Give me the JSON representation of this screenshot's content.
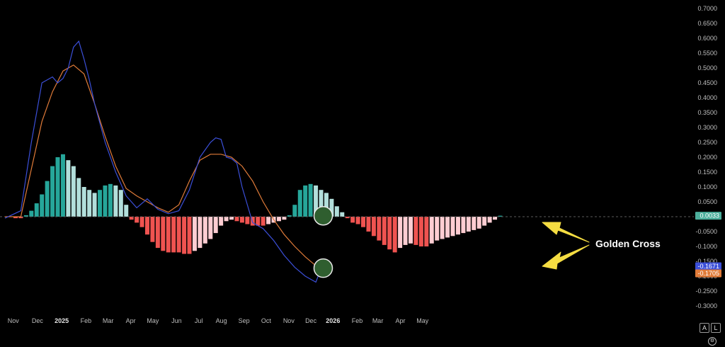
{
  "chart_data": {
    "type": "bar",
    "indicator": "MACD",
    "ylim": [
      -0.32,
      0.72
    ],
    "y_ticks": [
      "0.7000",
      "0.6500",
      "0.6000",
      "0.5500",
      "0.5000",
      "0.4500",
      "0.4000",
      "0.3500",
      "0.3000",
      "0.2500",
      "0.2000",
      "0.1500",
      "0.1000",
      "0.0500",
      "-0.0500",
      "-0.1000",
      "-0.1500",
      "-0.2000",
      "-0.2500",
      "-0.3000"
    ],
    "y_tick_values": [
      0.7,
      0.65,
      0.6,
      0.55,
      0.5,
      0.45,
      0.4,
      0.35,
      0.3,
      0.25,
      0.2,
      0.15,
      0.1,
      0.05,
      -0.05,
      -0.1,
      -0.15,
      -0.2,
      -0.25,
      -0.3
    ],
    "x_ticks": [
      {
        "label": "Nov",
        "t": 0.5,
        "bold": false
      },
      {
        "label": "Dec",
        "t": 5.1,
        "bold": false
      },
      {
        "label": "2025",
        "t": 9.7,
        "bold": true
      },
      {
        "label": "Feb",
        "t": 14.3,
        "bold": false
      },
      {
        "label": "Mar",
        "t": 18.5,
        "bold": false
      },
      {
        "label": "Apr",
        "t": 22.8,
        "bold": false
      },
      {
        "label": "May",
        "t": 27.0,
        "bold": false
      },
      {
        "label": "Jun",
        "t": 31.5,
        "bold": false
      },
      {
        "label": "Jul",
        "t": 35.7,
        "bold": false
      },
      {
        "label": "Aug",
        "t": 40.0,
        "bold": false
      },
      {
        "label": "Sep",
        "t": 44.3,
        "bold": false
      },
      {
        "label": "Oct",
        "t": 48.5,
        "bold": false
      },
      {
        "label": "Nov",
        "t": 52.8,
        "bold": false
      },
      {
        "label": "Dec",
        "t": 57.0,
        "bold": false
      },
      {
        "label": "2026",
        "t": 61.2,
        "bold": true
      },
      {
        "label": "Feb",
        "t": 65.8,
        "bold": false
      },
      {
        "label": "Mar",
        "t": 69.7,
        "bold": false
      },
      {
        "label": "Apr",
        "t": 74.0,
        "bold": false
      },
      {
        "label": "May",
        "t": 78.2,
        "bold": false
      }
    ],
    "histogram": {
      "name": "",
      "values": [
        -0.005,
        -0.005,
        0.005,
        0.02,
        0.045,
        0.075,
        0.12,
        0.17,
        0.2,
        0.21,
        0.19,
        0.17,
        0.13,
        0.1,
        0.09,
        0.08,
        0.09,
        0.105,
        0.11,
        0.105,
        0.09,
        0.04,
        -0.01,
        -0.02,
        -0.035,
        -0.06,
        -0.085,
        -0.105,
        -0.115,
        -0.12,
        -0.12,
        -0.12,
        -0.125,
        -0.125,
        -0.115,
        -0.105,
        -0.09,
        -0.075,
        -0.055,
        -0.03,
        -0.015,
        -0.01,
        -0.015,
        -0.02,
        -0.025,
        -0.03,
        -0.03,
        -0.03,
        -0.025,
        -0.02,
        -0.015,
        -0.01,
        0.005,
        0.04,
        0.09,
        0.105,
        0.11,
        0.105,
        0.09,
        0.08,
        0.06,
        0.035,
        0.015,
        -0.005,
        -0.02,
        -0.025,
        -0.035,
        -0.05,
        -0.065,
        -0.08,
        -0.095,
        -0.11,
        -0.12,
        -0.105,
        -0.095,
        -0.09,
        -0.095,
        -0.1,
        -0.1,
        -0.09,
        -0.08,
        -0.075,
        -0.07,
        -0.065,
        -0.06,
        -0.055,
        -0.05,
        -0.045,
        -0.04,
        -0.03,
        -0.02,
        -0.01,
        0.0033
      ],
      "colors": {
        "pos_strong": "#26a69a",
        "pos_weak": "#b2dfdb",
        "neg_strong": "#ef5350",
        "neg_weak": "#ffcdd2"
      }
    },
    "series": [
      {
        "name": "",
        "role": "macd",
        "color": "#3b4fd8",
        "x": [
          -2,
          1,
          3,
          5,
          7,
          8,
          9,
          10,
          11,
          12,
          13,
          14,
          15,
          17,
          19,
          21,
          23,
          25,
          27,
          29,
          31,
          33,
          35,
          36,
          37,
          38,
          39,
          40,
          41,
          42,
          43,
          45,
          47,
          49,
          51,
          53,
          55,
          57,
          58
        ],
        "values": [
          -0.005,
          0.02,
          0.25,
          0.45,
          0.47,
          0.45,
          0.465,
          0.5,
          0.57,
          0.59,
          0.53,
          0.46,
          0.38,
          0.25,
          0.15,
          0.07,
          0.03,
          0.06,
          0.025,
          0.01,
          0.02,
          0.09,
          0.2,
          0.225,
          0.25,
          0.265,
          0.26,
          0.2,
          0.195,
          0.18,
          0.1,
          -0.02,
          -0.04,
          -0.08,
          -0.13,
          -0.17,
          -0.2,
          -0.22,
          -0.175
        ]
      },
      {
        "name": "",
        "role": "signal",
        "color": "#e07b39",
        "x": [
          -2,
          1,
          3,
          5,
          7,
          9,
          11,
          13,
          15,
          17,
          19,
          21,
          23,
          25,
          27,
          29,
          31,
          33,
          35,
          37,
          39,
          41,
          43,
          45,
          47,
          49,
          51,
          53,
          55,
          57,
          58
        ],
        "values": [
          0.0,
          0.0,
          0.16,
          0.32,
          0.42,
          0.49,
          0.51,
          0.48,
          0.38,
          0.27,
          0.17,
          0.095,
          0.07,
          0.05,
          0.03,
          0.015,
          0.04,
          0.12,
          0.19,
          0.21,
          0.21,
          0.2,
          0.17,
          0.12,
          0.05,
          -0.01,
          -0.06,
          -0.1,
          -0.135,
          -0.165,
          -0.175
        ]
      }
    ],
    "last_values": [
      {
        "label": "0.0033",
        "value": 0.0033,
        "color": "#4caf9c"
      },
      {
        "label": "-0.1671",
        "value": -0.1671,
        "color": "#3b4fd8"
      },
      {
        "label": "-0.1705",
        "value": -0.1705,
        "color": "#e07b39"
      }
    ],
    "markers": [
      {
        "t": 58.4,
        "value": 0.003,
        "color": "#2f5e2f"
      },
      {
        "t": 58.4,
        "value": -0.173,
        "color": "#2f5e2f"
      }
    ],
    "annotation": {
      "text": "Golden Cross",
      "arrow_color": "#f5dd42"
    }
  },
  "controls": {
    "log_label": "A",
    "linear_label": "L",
    "settings_icon": "gear-icon"
  }
}
